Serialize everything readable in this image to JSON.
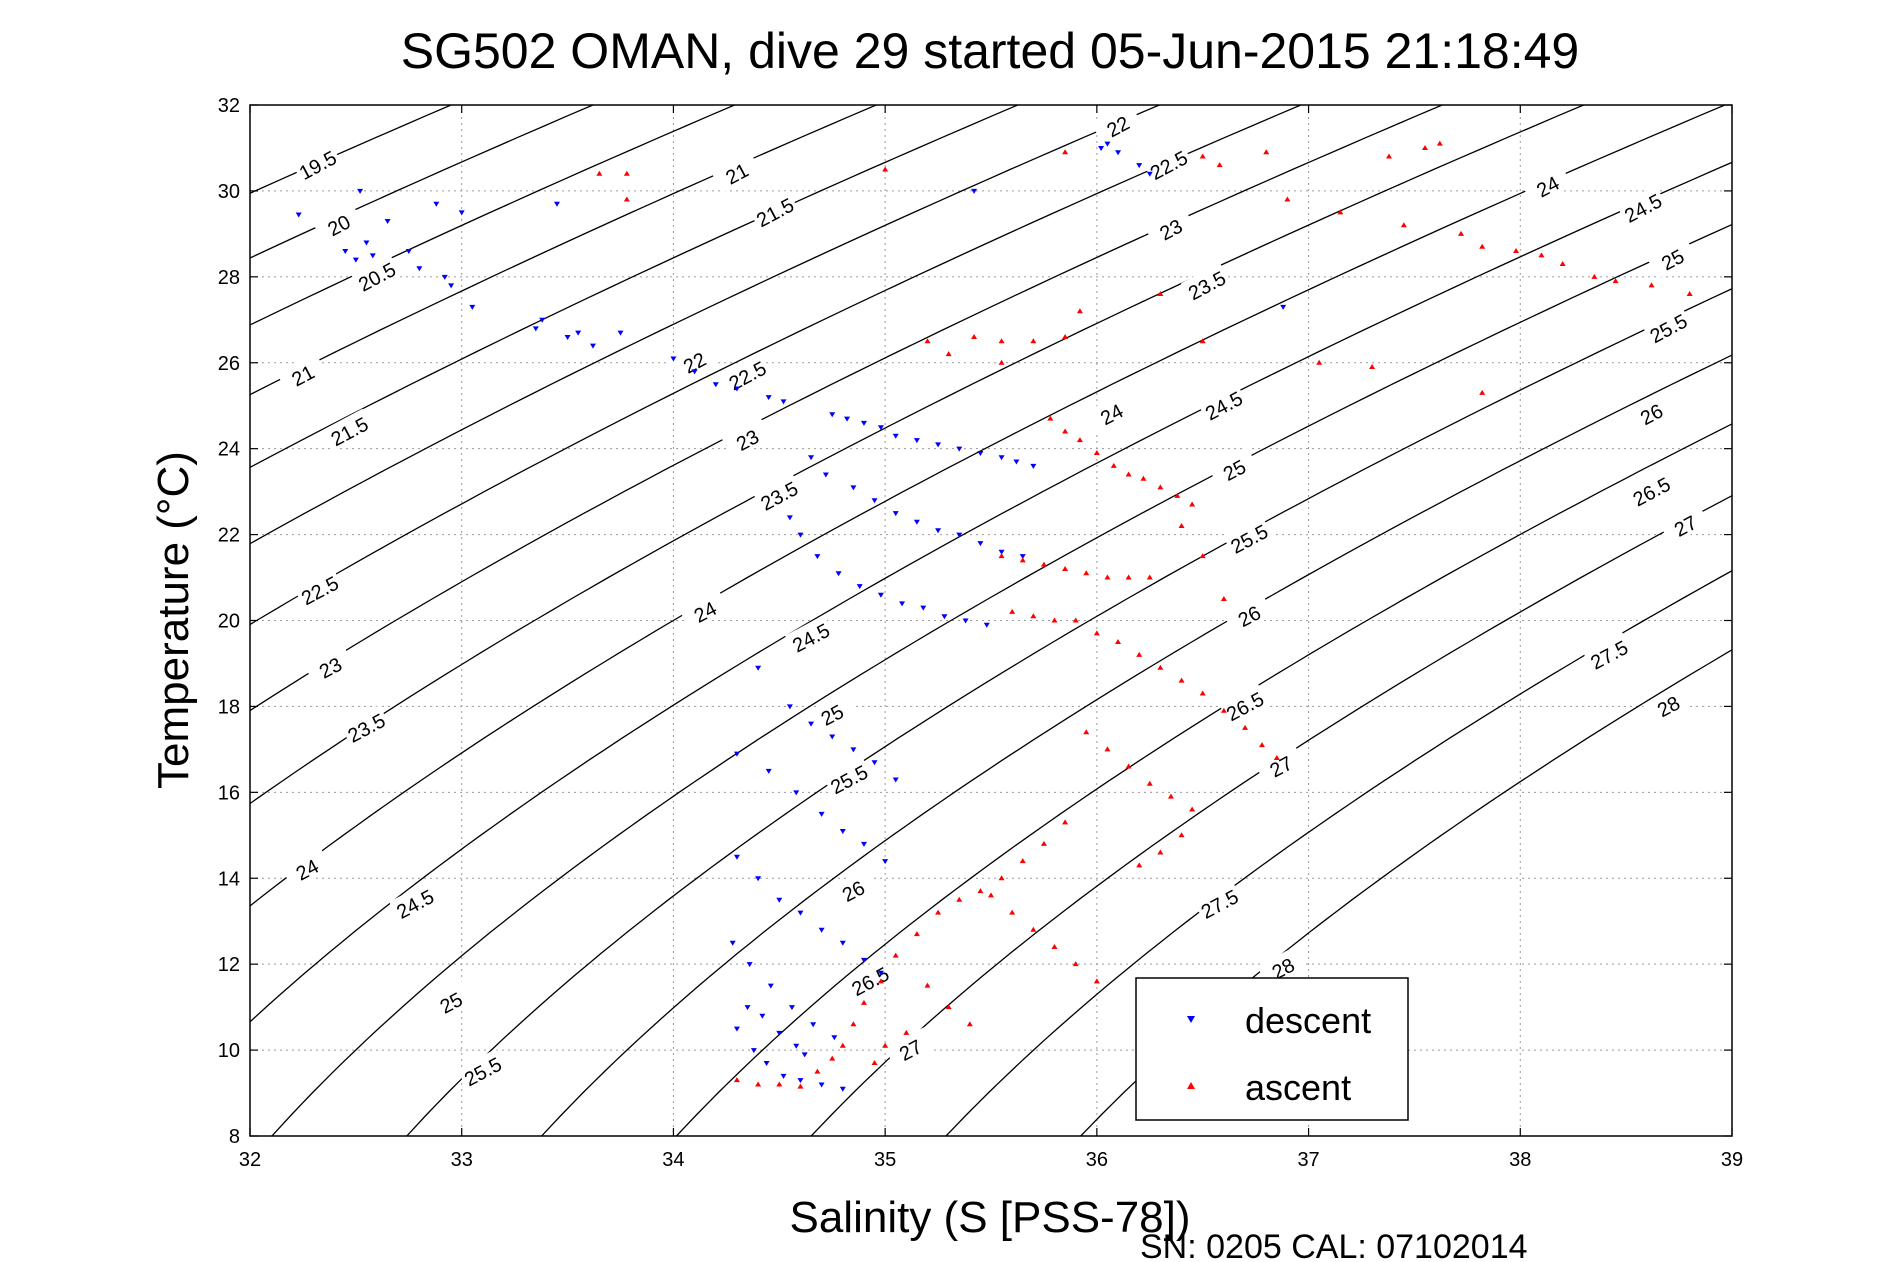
{
  "chart_data": {
    "type": "scatter",
    "title": "SG502 OMAN, dive 29 started 05-Jun-2015 21:18:49",
    "xlabel": "Salinity (S [PSS-78])",
    "ylabel": "Temperature (°C)",
    "xlim": [
      32,
      39
    ],
    "ylim": [
      8,
      32
    ],
    "xticks": [
      32,
      33,
      34,
      35,
      36,
      37,
      38,
      39
    ],
    "yticks": [
      8,
      10,
      12,
      14,
      16,
      18,
      20,
      22,
      24,
      26,
      28,
      30,
      32
    ],
    "grid": true,
    "legend_position": "bottom-right",
    "footer": "SN: 0205  CAL: 07102014",
    "density_contours": {
      "levels": [
        19.5,
        20,
        20.5,
        21,
        21.5,
        22,
        22.5,
        23,
        23.5,
        24,
        24.5,
        25,
        25.5,
        26,
        26.5,
        27,
        27.5,
        28
      ],
      "labels": [
        {
          "text": "19.5",
          "s": 32.32,
          "t": 30.6
        },
        {
          "text": "20",
          "s": 32.42,
          "t": 29.2
        },
        {
          "text": "20.5",
          "s": 32.6,
          "t": 28.0
        },
        {
          "text": "21",
          "s": 32.25,
          "t": 25.7
        },
        {
          "text": "21.5",
          "s": 32.47,
          "t": 24.4
        },
        {
          "text": "22.5",
          "s": 32.33,
          "t": 20.7
        },
        {
          "text": "23",
          "s": 32.38,
          "t": 18.9
        },
        {
          "text": "23.5",
          "s": 32.55,
          "t": 17.5
        },
        {
          "text": "24",
          "s": 32.27,
          "t": 14.2
        },
        {
          "text": "24.5",
          "s": 32.78,
          "t": 13.4
        },
        {
          "text": "25",
          "s": 32.95,
          "t": 11.1
        },
        {
          "text": "25.5",
          "s": 33.1,
          "t": 9.5
        },
        {
          "text": "21",
          "s": 34.3,
          "t": 30.4
        },
        {
          "text": "21.5",
          "s": 34.48,
          "t": 29.5
        },
        {
          "text": "22",
          "s": 34.1,
          "t": 26.0
        },
        {
          "text": "22.5",
          "s": 34.35,
          "t": 25.7
        },
        {
          "text": "23",
          "s": 34.35,
          "t": 24.2
        },
        {
          "text": "23.5",
          "s": 34.5,
          "t": 22.9
        },
        {
          "text": "24",
          "s": 34.15,
          "t": 20.2
        },
        {
          "text": "24.5",
          "s": 34.65,
          "t": 19.6
        },
        {
          "text": "25",
          "s": 34.75,
          "t": 17.8
        },
        {
          "text": "25.5",
          "s": 34.83,
          "t": 16.3
        },
        {
          "text": "26",
          "s": 34.85,
          "t": 13.7
        },
        {
          "text": "26.5",
          "s": 34.93,
          "t": 11.6
        },
        {
          "text": "27",
          "s": 35.12,
          "t": 10.0
        },
        {
          "text": "22",
          "s": 36.1,
          "t": 31.5
        },
        {
          "text": "22.5",
          "s": 36.34,
          "t": 30.6
        },
        {
          "text": "23",
          "s": 36.35,
          "t": 29.1
        },
        {
          "text": "23.5",
          "s": 36.52,
          "t": 27.8
        },
        {
          "text": "24",
          "s": 36.07,
          "t": 24.8
        },
        {
          "text": "24.5",
          "s": 36.6,
          "t": 25.0
        },
        {
          "text": "25",
          "s": 36.65,
          "t": 23.5
        },
        {
          "text": "25.5",
          "s": 36.72,
          "t": 21.9
        },
        {
          "text": "26",
          "s": 36.72,
          "t": 20.1
        },
        {
          "text": "26.5",
          "s": 36.7,
          "t": 18.0
        },
        {
          "text": "27",
          "s": 36.87,
          "t": 16.6
        },
        {
          "text": "27.5",
          "s": 36.58,
          "t": 13.4
        },
        {
          "text": "28",
          "s": 36.88,
          "t": 11.9
        },
        {
          "text": "24",
          "s": 38.13,
          "t": 30.1
        },
        {
          "text": "24.5",
          "s": 38.58,
          "t": 29.6
        },
        {
          "text": "25",
          "s": 38.72,
          "t": 28.4
        },
        {
          "text": "25.5",
          "s": 38.7,
          "t": 26.8
        },
        {
          "text": "26",
          "s": 38.62,
          "t": 24.8
        },
        {
          "text": "26.5",
          "s": 38.62,
          "t": 23.0
        },
        {
          "text": "27",
          "s": 38.78,
          "t": 22.2
        },
        {
          "text": "27.5",
          "s": 38.42,
          "t": 19.2
        },
        {
          "text": "28",
          "s": 38.7,
          "t": 18.0
        }
      ]
    },
    "series": [
      {
        "name": "descent",
        "color": "#0000ff",
        "marker": "triangle-down"
      },
      {
        "name": "ascent",
        "color": "#ff0000",
        "marker": "triangle-up"
      }
    ],
    "descent_points": [
      [
        32.23,
        29.45
      ],
      [
        32.52,
        30.0
      ],
      [
        32.45,
        28.6
      ],
      [
        32.5,
        28.4
      ],
      [
        32.55,
        28.8
      ],
      [
        32.58,
        28.5
      ],
      [
        32.65,
        29.3
      ],
      [
        32.75,
        28.6
      ],
      [
        32.8,
        28.2
      ],
      [
        32.88,
        29.7
      ],
      [
        32.92,
        28.0
      ],
      [
        32.95,
        27.8
      ],
      [
        33.0,
        29.5
      ],
      [
        33.05,
        27.3
      ],
      [
        33.35,
        26.8
      ],
      [
        33.38,
        27.0
      ],
      [
        33.45,
        29.7
      ],
      [
        33.5,
        26.6
      ],
      [
        33.55,
        26.7
      ],
      [
        33.62,
        26.4
      ],
      [
        33.75,
        26.7
      ],
      [
        34.0,
        26.1
      ],
      [
        34.1,
        25.8
      ],
      [
        34.2,
        25.5
      ],
      [
        34.3,
        25.4
      ],
      [
        34.45,
        25.2
      ],
      [
        34.52,
        25.1
      ],
      [
        35.42,
        30.0
      ],
      [
        36.02,
        31.0
      ],
      [
        36.05,
        31.1
      ],
      [
        36.1,
        30.9
      ],
      [
        36.2,
        30.6
      ],
      [
        36.25,
        30.4
      ],
      [
        36.88,
        27.3
      ],
      [
        34.75,
        24.8
      ],
      [
        34.82,
        24.7
      ],
      [
        34.9,
        24.6
      ],
      [
        34.98,
        24.5
      ],
      [
        35.05,
        24.3
      ],
      [
        35.15,
        24.2
      ],
      [
        35.25,
        24.1
      ],
      [
        35.35,
        24.0
      ],
      [
        35.45,
        23.9
      ],
      [
        35.55,
        23.8
      ],
      [
        35.62,
        23.7
      ],
      [
        35.7,
        23.6
      ],
      [
        34.65,
        23.8
      ],
      [
        34.72,
        23.4
      ],
      [
        34.85,
        23.1
      ],
      [
        34.95,
        22.8
      ],
      [
        35.05,
        22.5
      ],
      [
        35.15,
        22.3
      ],
      [
        35.25,
        22.1
      ],
      [
        35.35,
        22.0
      ],
      [
        35.45,
        21.8
      ],
      [
        35.55,
        21.6
      ],
      [
        35.65,
        21.5
      ],
      [
        34.55,
        22.4
      ],
      [
        34.6,
        22.0
      ],
      [
        34.68,
        21.5
      ],
      [
        34.78,
        21.1
      ],
      [
        34.88,
        20.8
      ],
      [
        34.98,
        20.6
      ],
      [
        35.08,
        20.4
      ],
      [
        35.18,
        20.3
      ],
      [
        35.28,
        20.1
      ],
      [
        35.38,
        20.0
      ],
      [
        35.48,
        19.9
      ],
      [
        34.4,
        18.9
      ],
      [
        34.55,
        18.0
      ],
      [
        34.65,
        17.6
      ],
      [
        34.75,
        17.3
      ],
      [
        34.85,
        17.0
      ],
      [
        34.95,
        16.7
      ],
      [
        35.05,
        16.3
      ],
      [
        34.3,
        16.9
      ],
      [
        34.45,
        16.5
      ],
      [
        34.58,
        16.0
      ],
      [
        34.7,
        15.5
      ],
      [
        34.8,
        15.1
      ],
      [
        34.9,
        14.8
      ],
      [
        35.0,
        14.4
      ],
      [
        34.3,
        14.5
      ],
      [
        34.4,
        14.0
      ],
      [
        34.5,
        13.5
      ],
      [
        34.6,
        13.2
      ],
      [
        34.7,
        12.8
      ],
      [
        34.8,
        12.5
      ],
      [
        34.9,
        12.1
      ],
      [
        34.98,
        11.8
      ],
      [
        34.28,
        12.5
      ],
      [
        34.36,
        12.0
      ],
      [
        34.46,
        11.5
      ],
      [
        34.56,
        11.0
      ],
      [
        34.66,
        10.6
      ],
      [
        34.76,
        10.3
      ],
      [
        34.3,
        10.5
      ],
      [
        34.38,
        10.0
      ],
      [
        34.44,
        9.7
      ],
      [
        34.52,
        9.4
      ],
      [
        34.6,
        9.3
      ],
      [
        34.7,
        9.2
      ],
      [
        34.8,
        9.1
      ],
      [
        34.35,
        11.0
      ],
      [
        34.42,
        10.8
      ],
      [
        34.5,
        10.4
      ],
      [
        34.58,
        10.1
      ],
      [
        34.62,
        9.9
      ]
    ],
    "ascent_points": [
      [
        33.65,
        30.4
      ],
      [
        33.78,
        30.4
      ],
      [
        33.78,
        29.8
      ],
      [
        35.0,
        30.5
      ],
      [
        35.85,
        30.9
      ],
      [
        36.5,
        30.8
      ],
      [
        36.58,
        30.6
      ],
      [
        36.8,
        30.9
      ],
      [
        36.9,
        29.8
      ],
      [
        37.15,
        29.5
      ],
      [
        37.38,
        30.8
      ],
      [
        37.45,
        29.2
      ],
      [
        37.55,
        31.0
      ],
      [
        37.62,
        31.1
      ],
      [
        37.72,
        29.0
      ],
      [
        37.82,
        28.7
      ],
      [
        37.98,
        28.6
      ],
      [
        38.1,
        28.5
      ],
      [
        38.2,
        28.3
      ],
      [
        38.35,
        28.0
      ],
      [
        38.45,
        27.9
      ],
      [
        38.62,
        27.8
      ],
      [
        38.8,
        27.6
      ],
      [
        35.7,
        26.5
      ],
      [
        35.55,
        26.5
      ],
      [
        35.2,
        26.5
      ],
      [
        35.3,
        26.2
      ],
      [
        35.42,
        26.6
      ],
      [
        35.55,
        26.0
      ],
      [
        35.85,
        26.6
      ],
      [
        35.92,
        27.2
      ],
      [
        36.3,
        27.6
      ],
      [
        36.5,
        26.5
      ],
      [
        37.05,
        26.0
      ],
      [
        37.3,
        25.9
      ],
      [
        37.82,
        25.3
      ],
      [
        35.78,
        24.7
      ],
      [
        35.85,
        24.4
      ],
      [
        35.92,
        24.2
      ],
      [
        36.0,
        23.9
      ],
      [
        36.08,
        23.6
      ],
      [
        36.15,
        23.4
      ],
      [
        36.22,
        23.3
      ],
      [
        36.3,
        23.1
      ],
      [
        36.38,
        22.9
      ],
      [
        36.45,
        22.7
      ],
      [
        35.55,
        21.5
      ],
      [
        35.65,
        21.4
      ],
      [
        35.75,
        21.3
      ],
      [
        35.85,
        21.2
      ],
      [
        35.95,
        21.1
      ],
      [
        36.05,
        21.0
      ],
      [
        36.15,
        21.0
      ],
      [
        36.25,
        21.0
      ],
      [
        35.6,
        20.2
      ],
      [
        35.7,
        20.1
      ],
      [
        35.8,
        20.0
      ],
      [
        35.9,
        20.0
      ],
      [
        36.0,
        19.7
      ],
      [
        36.1,
        19.5
      ],
      [
        36.2,
        19.2
      ],
      [
        36.3,
        18.9
      ],
      [
        36.4,
        18.6
      ],
      [
        36.5,
        18.3
      ],
      [
        36.6,
        17.9
      ],
      [
        36.7,
        17.5
      ],
      [
        36.78,
        17.1
      ],
      [
        36.85,
        16.8
      ],
      [
        35.95,
        17.4
      ],
      [
        36.05,
        17.0
      ],
      [
        36.15,
        16.6
      ],
      [
        36.25,
        16.2
      ],
      [
        36.35,
        15.9
      ],
      [
        36.45,
        15.6
      ],
      [
        35.85,
        15.3
      ],
      [
        35.75,
        14.8
      ],
      [
        35.65,
        14.4
      ],
      [
        35.55,
        14.0
      ],
      [
        35.45,
        13.7
      ],
      [
        35.35,
        13.5
      ],
      [
        35.25,
        13.2
      ],
      [
        35.15,
        12.7
      ],
      [
        35.05,
        12.2
      ],
      [
        34.98,
        11.6
      ],
      [
        34.9,
        11.1
      ],
      [
        34.85,
        10.6
      ],
      [
        34.8,
        10.1
      ],
      [
        34.75,
        9.8
      ],
      [
        34.68,
        9.5
      ],
      [
        35.5,
        13.6
      ],
      [
        35.6,
        13.2
      ],
      [
        35.7,
        12.8
      ],
      [
        35.8,
        12.4
      ],
      [
        35.9,
        12.0
      ],
      [
        36.0,
        11.6
      ],
      [
        35.2,
        11.5
      ],
      [
        35.3,
        11.0
      ],
      [
        35.4,
        10.6
      ],
      [
        35.1,
        10.4
      ],
      [
        35.0,
        10.1
      ],
      [
        34.95,
        9.7
      ],
      [
        34.3,
        9.3
      ],
      [
        34.4,
        9.2
      ],
      [
        34.5,
        9.2
      ],
      [
        34.6,
        9.15
      ],
      [
        36.4,
        15.0
      ],
      [
        36.3,
        14.6
      ],
      [
        36.2,
        14.3
      ],
      [
        36.6,
        20.5
      ],
      [
        36.5,
        21.5
      ],
      [
        36.4,
        22.2
      ]
    ]
  }
}
